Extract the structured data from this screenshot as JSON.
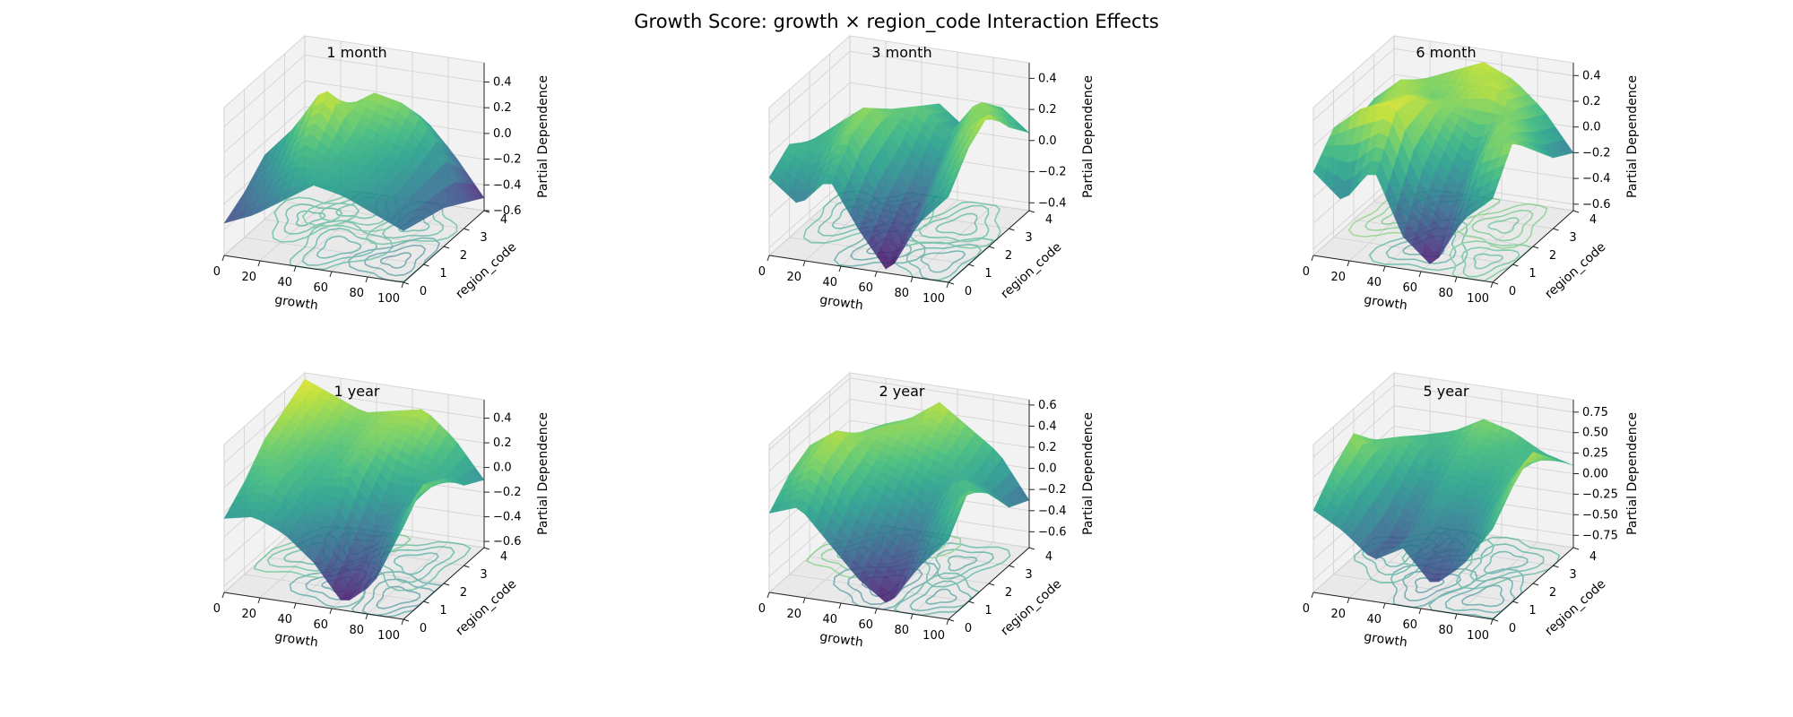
{
  "figure": {
    "title": "Growth Score: growth × region_code Interaction Effects"
  },
  "chart_data": [
    {
      "type": "surface3d",
      "title": "1 month",
      "xlabel": "growth",
      "ylabel": "region_code",
      "zlabel": "Partial Dependence",
      "xticks": [
        "0",
        "20",
        "40",
        "60",
        "80",
        "100"
      ],
      "yticks": [
        "0",
        "1",
        "2",
        "3",
        "4"
      ],
      "zticks": [
        "−0.6",
        "−0.4",
        "−0.2",
        "0.0",
        "0.2",
        "0.4"
      ],
      "xlim": [
        0,
        100
      ],
      "ylim": [
        0,
        4
      ],
      "zlim": [
        -0.6,
        0.55
      ],
      "colormap": "viridis",
      "grid": [
        [
          -0.35,
          -0.25,
          -0.1,
          0.05,
          0.0,
          -0.1,
          -0.2
        ],
        [
          -0.25,
          -0.05,
          0.2,
          0.1,
          0.05,
          -0.05,
          -0.25
        ],
        [
          -0.1,
          0.15,
          0.5,
          0.2,
          0.1,
          0.0,
          -0.3
        ],
        [
          -0.15,
          0.0,
          0.2,
          0.35,
          0.3,
          0.1,
          -0.4
        ],
        [
          -0.25,
          -0.15,
          -0.05,
          0.1,
          0.05,
          -0.2,
          -0.5
        ]
      ]
    },
    {
      "type": "surface3d",
      "title": "3 month",
      "xlabel": "growth",
      "ylabel": "region_code",
      "zlabel": "Partial Dependence",
      "xticks": [
        "0",
        "20",
        "40",
        "60",
        "80",
        "100"
      ],
      "yticks": [
        "0",
        "1",
        "2",
        "3",
        "4"
      ],
      "zticks": [
        "−0.4",
        "−0.2",
        "0.0",
        "0.2",
        "0.4"
      ],
      "xlim": [
        0,
        100
      ],
      "ylim": [
        0,
        4
      ],
      "zlim": [
        -0.45,
        0.5
      ],
      "colormap": "viridis",
      "grid": [
        [
          0.05,
          -0.1,
          0.1,
          -0.2,
          -0.45,
          -0.1,
          0.1
        ],
        [
          0.15,
          0.1,
          0.3,
          0.0,
          -0.3,
          0.1,
          0.3
        ],
        [
          0.05,
          0.2,
          0.35,
          0.1,
          -0.1,
          0.25,
          0.4
        ],
        [
          -0.1,
          0.05,
          0.2,
          0.25,
          0.1,
          0.35,
          0.2
        ],
        [
          -0.2,
          -0.1,
          0.05,
          0.15,
          0.0,
          0.2,
          0.05
        ]
      ]
    },
    {
      "type": "surface3d",
      "title": "6 month",
      "xlabel": "growth",
      "ylabel": "region_code",
      "zlabel": "Partial Dependence",
      "xticks": [
        "0",
        "20",
        "40",
        "60",
        "80",
        "100"
      ],
      "yticks": [
        "0",
        "1",
        "2",
        "3",
        "4"
      ],
      "zticks": [
        "−0.6",
        "−0.4",
        "−0.2",
        "0.0",
        "0.2",
        "0.4"
      ],
      "xlim": [
        0,
        100
      ],
      "ylim": [
        0,
        4
      ],
      "zlim": [
        -0.65,
        0.5
      ],
      "colormap": "viridis",
      "grid": [
        [
          0.0,
          -0.2,
          0.1,
          -0.4,
          -0.6,
          -0.2,
          0.0
        ],
        [
          0.2,
          0.4,
          0.45,
          0.0,
          -0.3,
          0.2,
          0.3
        ],
        [
          0.1,
          0.3,
          0.4,
          0.2,
          0.0,
          0.3,
          0.1
        ],
        [
          0.15,
          0.35,
          0.2,
          0.3,
          0.4,
          0.2,
          -0.1
        ],
        [
          0.1,
          0.2,
          0.3,
          0.4,
          0.3,
          0.1,
          -0.2
        ]
      ]
    },
    {
      "type": "surface3d",
      "title": "1 year",
      "xlabel": "growth",
      "ylabel": "region_code",
      "zlabel": "Partial Dependence",
      "xticks": [
        "0",
        "20",
        "40",
        "60",
        "80",
        "100"
      ],
      "yticks": [
        "0",
        "1",
        "2",
        "3",
        "4"
      ],
      "zticks": [
        "−0.6",
        "−0.4",
        "−0.2",
        "0.0",
        "0.2",
        "0.4"
      ],
      "xlim": [
        0,
        100
      ],
      "ylim": [
        0,
        4
      ],
      "zlim": [
        -0.65,
        0.55
      ],
      "colormap": "viridis",
      "grid": [
        [
          -0.05,
          0.0,
          -0.1,
          -0.3,
          -0.6,
          -0.4,
          0.1
        ],
        [
          0.1,
          0.2,
          0.0,
          -0.1,
          -0.4,
          -0.1,
          0.3
        ],
        [
          0.3,
          0.2,
          0.1,
          0.2,
          -0.1,
          0.0,
          0.2
        ],
        [
          0.4,
          0.3,
          0.2,
          0.3,
          0.2,
          0.1,
          0.0
        ],
        [
          0.5,
          0.4,
          0.3,
          0.35,
          0.4,
          0.2,
          -0.1
        ]
      ]
    },
    {
      "type": "surface3d",
      "title": "2 year",
      "xlabel": "growth",
      "ylabel": "region_code",
      "zlabel": "Partial Dependence",
      "xticks": [
        "0",
        "20",
        "40",
        "60",
        "80",
        "100"
      ],
      "yticks": [
        "0",
        "1",
        "2",
        "3",
        "4"
      ],
      "zticks": [
        "−0.6",
        "−0.4",
        "−0.2",
        "0.0",
        "0.2",
        "0.4",
        "0.6"
      ],
      "xlim": [
        0,
        100
      ],
      "ylim": [
        0,
        4
      ],
      "zlim": [
        -0.75,
        0.65
      ],
      "colormap": "viridis",
      "grid": [
        [
          0.0,
          0.1,
          -0.2,
          -0.5,
          -0.7,
          -0.3,
          0.0
        ],
        [
          0.2,
          0.4,
          0.1,
          -0.2,
          -0.4,
          0.0,
          0.3
        ],
        [
          0.3,
          0.5,
          0.2,
          0.1,
          -0.1,
          0.2,
          0.1
        ],
        [
          0.1,
          0.3,
          0.4,
          0.3,
          0.2,
          0.0,
          -0.2
        ],
        [
          0.0,
          0.2,
          0.3,
          0.5,
          0.3,
          0.1,
          -0.3
        ]
      ]
    },
    {
      "type": "surface3d",
      "title": "5 year",
      "xlabel": "growth",
      "ylabel": "region_code",
      "zlabel": "Partial Dependence",
      "xticks": [
        "0",
        "20",
        "40",
        "60",
        "80",
        "100"
      ],
      "yticks": [
        "0",
        "1",
        "2",
        "3",
        "4"
      ],
      "zticks": [
        "−0.75",
        "−0.50",
        "−0.25",
        "0.00",
        "0.25",
        "0.50",
        "0.75"
      ],
      "xlim": [
        0,
        100
      ],
      "ylim": [
        0,
        4
      ],
      "zlim": [
        -0.9,
        0.9
      ],
      "colormap": "viridis",
      "grid": [
        [
          0.1,
          -0.1,
          -0.4,
          -0.2,
          -0.6,
          -0.3,
          0.2
        ],
        [
          0.4,
          0.1,
          -0.5,
          -0.1,
          -0.3,
          0.0,
          0.5
        ],
        [
          0.6,
          0.2,
          -0.2,
          0.1,
          0.0,
          0.2,
          0.7
        ],
        [
          0.3,
          0.4,
          0.1,
          0.3,
          0.2,
          0.3,
          0.4
        ],
        [
          0.1,
          0.2,
          0.3,
          0.5,
          0.4,
          0.2,
          0.1
        ]
      ]
    }
  ]
}
